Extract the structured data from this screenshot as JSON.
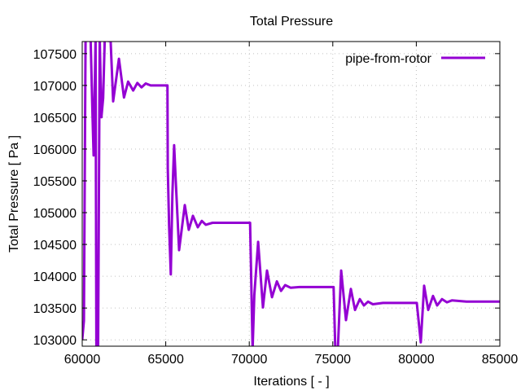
{
  "chart_data": {
    "type": "line",
    "title": "Total Pressure",
    "xlabel": "Iterations [ - ]",
    "ylabel": "Total Pressure [ Pa ]",
    "xlim": [
      60000,
      85000
    ],
    "ylim": [
      102900,
      107690
    ],
    "xticks": [
      60000,
      65000,
      70000,
      75000,
      80000,
      85000
    ],
    "yticks": [
      103000,
      103500,
      104000,
      104500,
      105000,
      105500,
      106000,
      106500,
      107000,
      107500
    ],
    "grid": true,
    "legend_position": "top-right",
    "colors": {
      "series": "#9400d3"
    },
    "series": [
      {
        "name": "pipe-from-rotor",
        "points": [
          [
            60000,
            103000
          ],
          [
            60100,
            103300
          ],
          [
            60200,
            109500
          ],
          [
            60500,
            110000
          ],
          [
            60620,
            106500
          ],
          [
            60680,
            105900
          ],
          [
            60800,
            110000
          ],
          [
            60850,
            101000
          ],
          [
            60950,
            101000
          ],
          [
            61050,
            109000
          ],
          [
            61150,
            106500
          ],
          [
            61250,
            106800
          ],
          [
            61350,
            110000
          ],
          [
            61550,
            107700
          ],
          [
            61700,
            107700
          ],
          [
            61850,
            106750
          ],
          [
            62200,
            107420
          ],
          [
            62500,
            106810
          ],
          [
            62750,
            107060
          ],
          [
            63050,
            106920
          ],
          [
            63300,
            107040
          ],
          [
            63550,
            106970
          ],
          [
            63800,
            107030
          ],
          [
            64100,
            107000
          ],
          [
            65100,
            107000
          ],
          [
            65120,
            105700
          ],
          [
            65200,
            104800
          ],
          [
            65300,
            104030
          ],
          [
            65400,
            105300
          ],
          [
            65500,
            106060
          ],
          [
            65600,
            105500
          ],
          [
            65800,
            104410
          ],
          [
            66140,
            105120
          ],
          [
            66380,
            104730
          ],
          [
            66630,
            104950
          ],
          [
            66920,
            104770
          ],
          [
            67160,
            104870
          ],
          [
            67400,
            104810
          ],
          [
            67800,
            104840
          ],
          [
            70050,
            104840
          ],
          [
            70100,
            104150
          ],
          [
            70200,
            101000
          ],
          [
            70300,
            103700
          ],
          [
            70530,
            104540
          ],
          [
            70820,
            103510
          ],
          [
            71060,
            104090
          ],
          [
            71360,
            103670
          ],
          [
            71650,
            103920
          ],
          [
            71900,
            103770
          ],
          [
            72150,
            103860
          ],
          [
            72470,
            103820
          ],
          [
            73000,
            103830
          ],
          [
            75050,
            103830
          ],
          [
            75150,
            102500
          ],
          [
            75300,
            102500
          ],
          [
            75500,
            104090
          ],
          [
            75790,
            103310
          ],
          [
            76080,
            103800
          ],
          [
            76330,
            103470
          ],
          [
            76620,
            103640
          ],
          [
            76860,
            103540
          ],
          [
            77110,
            103600
          ],
          [
            77400,
            103560
          ],
          [
            78000,
            103580
          ],
          [
            80030,
            103580
          ],
          [
            80270,
            102960
          ],
          [
            80470,
            103850
          ],
          [
            80710,
            103470
          ],
          [
            81000,
            103690
          ],
          [
            81250,
            103540
          ],
          [
            81540,
            103640
          ],
          [
            81830,
            103590
          ],
          [
            82130,
            103620
          ],
          [
            83000,
            103600
          ],
          [
            85000,
            103600
          ]
        ]
      }
    ]
  }
}
